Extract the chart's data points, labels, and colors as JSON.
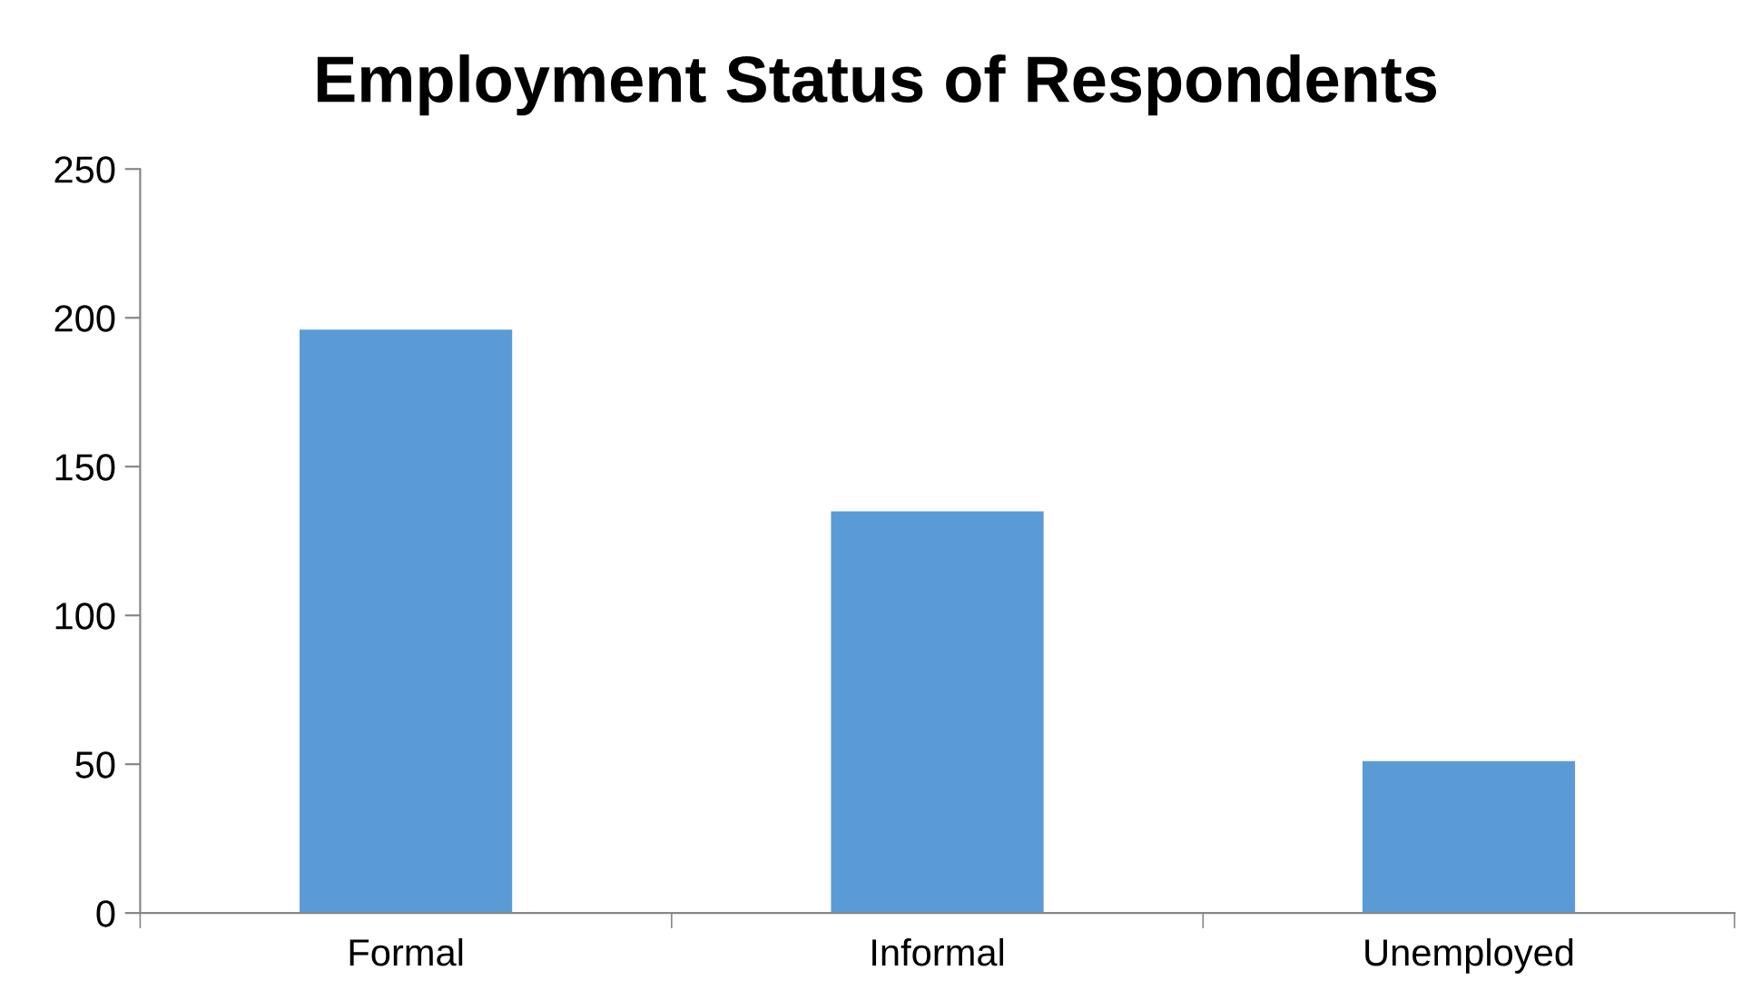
{
  "chart_data": {
    "type": "bar",
    "title": "Employment Status of Respondents",
    "categories": [
      "Formal",
      "Informal",
      "Unemployed"
    ],
    "values": [
      196,
      135,
      51
    ],
    "color": "#5b9bd5",
    "ylim": [
      0,
      250
    ],
    "yticks": [
      0,
      50,
      100,
      150,
      200,
      250
    ],
    "grid": false,
    "legend": false
  }
}
